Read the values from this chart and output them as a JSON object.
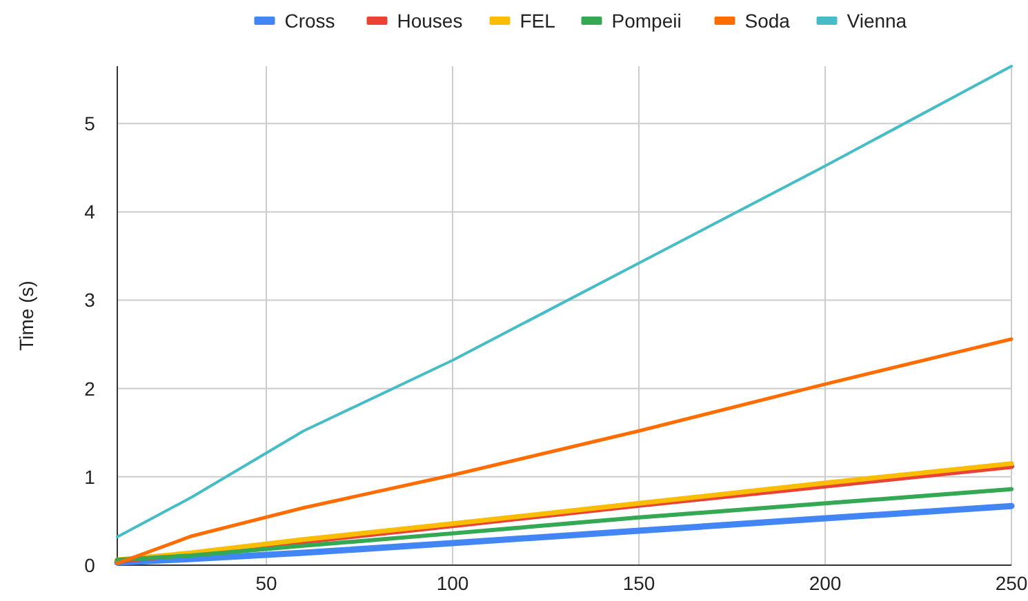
{
  "chart_data": {
    "type": "line",
    "ylabel": "Time (s)",
    "x": [
      10,
      30,
      60,
      100,
      150,
      200,
      250
    ],
    "xlim": [
      10,
      250
    ],
    "xticks": [
      50,
      100,
      150,
      200,
      250
    ],
    "ylim": [
      0,
      5.65
    ],
    "yticks": [
      0,
      1,
      2,
      3,
      4,
      5
    ],
    "grid": true,
    "legend": "top",
    "marker": "none",
    "line_style": "solid",
    "series": [
      {
        "name": "Cross",
        "color": "#4285f4",
        "values": [
          0.03,
          0.07,
          0.14,
          0.25,
          0.39,
          0.53,
          0.67
        ]
      },
      {
        "name": "Houses",
        "color": "#ea4335",
        "values": [
          0.05,
          0.13,
          0.27,
          0.45,
          0.68,
          0.9,
          1.12
        ]
      },
      {
        "name": "FEL",
        "color": "#fbbc04",
        "values": [
          0.06,
          0.14,
          0.29,
          0.47,
          0.7,
          0.93,
          1.15
        ]
      },
      {
        "name": "Pompeii",
        "color": "#34a853",
        "values": [
          0.06,
          0.11,
          0.22,
          0.36,
          0.54,
          0.7,
          0.86
        ]
      },
      {
        "name": "Soda",
        "color": "#ff6d01",
        "values": [
          0.02,
          0.33,
          0.65,
          1.02,
          1.52,
          2.05,
          2.56
        ]
      },
      {
        "name": "Vienna",
        "color": "#46bdc6",
        "values": [
          0.32,
          0.77,
          1.52,
          2.32,
          3.42,
          4.52,
          5.65
        ]
      }
    ]
  }
}
